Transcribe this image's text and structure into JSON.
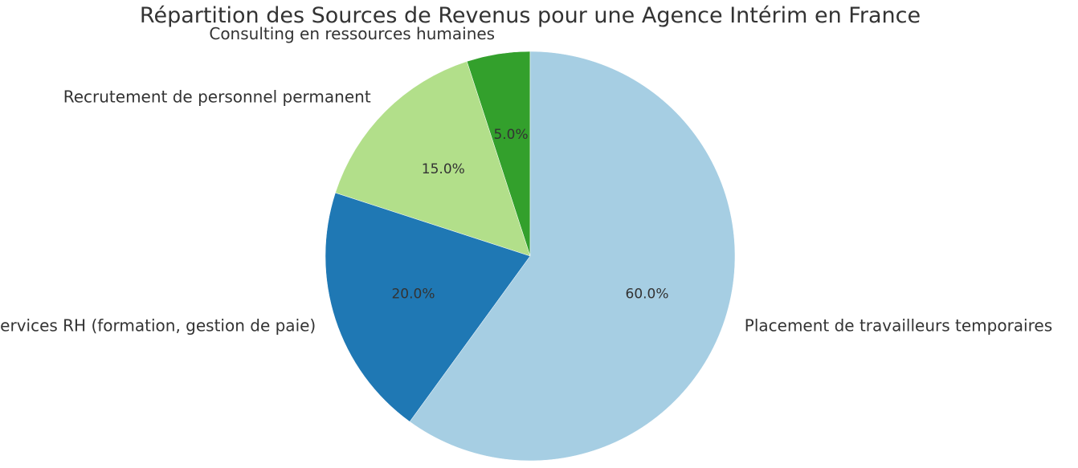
{
  "chart_data": {
    "type": "pie",
    "title": "Répartition des Sources de Revenus pour une Agence Intérim en France",
    "start_angle_deg": 90,
    "direction": "counterclockwise",
    "slices": [
      {
        "label": "Consulting en ressources humaines",
        "value": 5,
        "pct_label": "5.0%",
        "color": "#33a02c"
      },
      {
        "label": "Recrutement de personnel permanent",
        "value": 15,
        "pct_label": "15.0%",
        "color": "#b2df8a"
      },
      {
        "label": "Services RH (formation, gestion de paie)",
        "value": 20,
        "pct_label": "20.0%",
        "color": "#1f78b4"
      },
      {
        "label": "Placement de travailleurs temporaires",
        "value": 60,
        "pct_label": "60.0%",
        "color": "#a6cee3"
      }
    ]
  }
}
